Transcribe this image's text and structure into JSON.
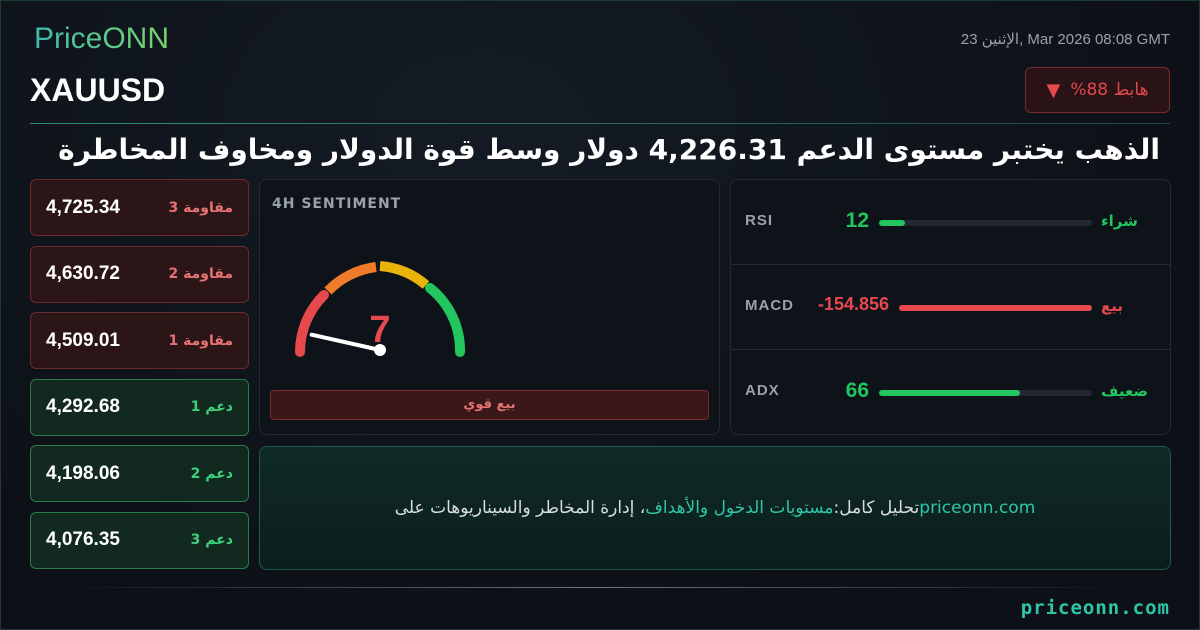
{
  "brand": {
    "logo": "PriceONN",
    "footer_url": "priceonn.com"
  },
  "header": {
    "datetime": "23 الإثنين, Mar 2026 08:08 GMT",
    "symbol": "XAUUSD",
    "trend_label": "%هابط 88",
    "trend_icon": "triangle-down-icon",
    "headline": "الذهب يختبر مستوى الدعم 4,226.31 دولار وسط قوة الدولار ومخاوف المخاطرة"
  },
  "levels": [
    {
      "label": "مقاومة 3",
      "value": "4,725.34",
      "type": "resistance"
    },
    {
      "label": "مقاومة 2",
      "value": "4,630.72",
      "type": "resistance"
    },
    {
      "label": "مقاومة 1",
      "value": "4,509.01",
      "type": "resistance"
    },
    {
      "label": "دعم 1",
      "value": "4,292.68",
      "type": "support"
    },
    {
      "label": "دعم 2",
      "value": "4,198.06",
      "type": "support"
    },
    {
      "label": "دعم 3",
      "value": "4,076.35",
      "type": "support"
    }
  ],
  "sentiment": {
    "title": "4H SENTIMENT",
    "value": "7",
    "value_num": 7,
    "label": "بيع قوي"
  },
  "indicators": [
    {
      "name": "RSI",
      "value": "12",
      "signal": "شراء",
      "fill_pct": 12,
      "color": "#22c55e"
    },
    {
      "name": "MACD",
      "value": "-154.856",
      "signal": "بيع",
      "fill_pct": 100,
      "color": "#e5484d"
    },
    {
      "name": "ADX",
      "value": "66",
      "signal": "ضعيف",
      "fill_pct": 66,
      "color": "#22c55e"
    }
  ],
  "cta": {
    "site": "priceonn.com",
    "prefix": " تحليل كامل: ",
    "highlight": "مستويات الدخول والأهداف",
    "suffix": "، إدارة المخاطر والسيناريوهات على"
  },
  "colors": {
    "bearish": "#e5484d",
    "bullish": "#22c55e",
    "accent": "#2fc6a8"
  }
}
